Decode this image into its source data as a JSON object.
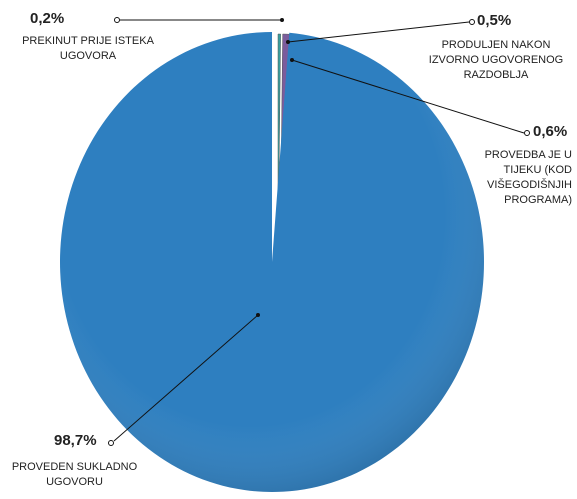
{
  "chart_data": {
    "type": "pie",
    "categories": [
      "PREKINUT PRIJE ISTEKA UGOVORA",
      "PRODULJEN NAKON IZVORNO UGOVORENOG RAZDOBLJA",
      "PROVEDBA JE U TIJEKU (KOD VIŠEGODIŠNJIH PROGRAMA)",
      "PROVEDEN SUKLADNO UGOVORU"
    ],
    "values": [
      0.2,
      0.5,
      0.6,
      98.7
    ],
    "value_labels": [
      "0,2%",
      "0,5%",
      "0,6%",
      "98,7%"
    ],
    "colors": [
      "#3a9e9e",
      "#7b5c9c",
      "#7fb244",
      "#2e7fc0"
    ]
  }
}
